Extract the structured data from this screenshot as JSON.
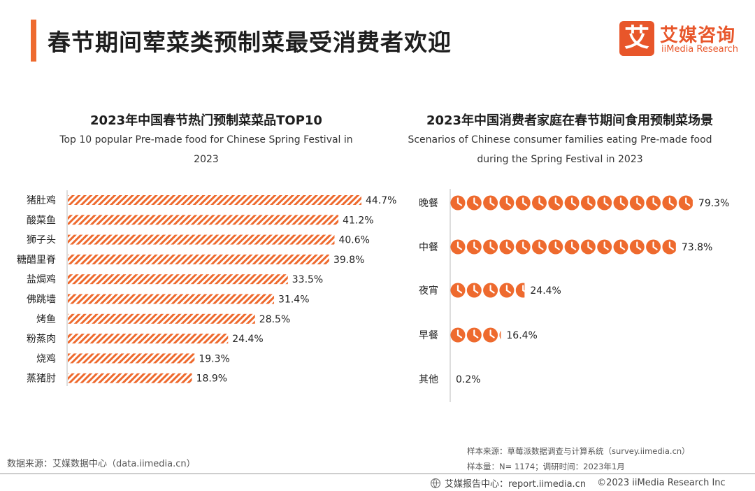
{
  "header": {
    "title": "春节期间荤菜类预制菜最受消费者欢迎",
    "logo_glyph": "艾",
    "logo_cn": "艾媒咨询",
    "logo_en": "iiMedia Research"
  },
  "colors": {
    "accent": "#ee6a2e",
    "axis": "#bbbbbb",
    "text": "#222222"
  },
  "chart_data": [
    {
      "type": "bar",
      "orientation": "horizontal",
      "title": "2023年中国春节热门预制菜菜品TOP10",
      "subtitle_lines": [
        "Top 10 popular Pre-made food for Chinese Spring Festival in",
        "2023"
      ],
      "categories": [
        "猪肚鸡",
        "酸菜鱼",
        "狮子头",
        "糖醋里脊",
        "盐焗鸡",
        "佛跳墙",
        "烤鱼",
        "粉蒸肉",
        "烧鸡",
        "蒸猪肘"
      ],
      "values": [
        44.7,
        41.2,
        40.6,
        39.8,
        33.5,
        31.4,
        28.5,
        24.4,
        19.3,
        18.9
      ],
      "value_labels": [
        "44.7%",
        "41.2%",
        "40.6%",
        "39.8%",
        "33.5%",
        "31.4%",
        "28.5%",
        "24.4%",
        "19.3%",
        "18.9%"
      ],
      "unit": "%",
      "xlim": [
        0,
        45
      ]
    },
    {
      "type": "pictogram",
      "title": "2023年中国消费者家庭在春节期间食用预制菜场景",
      "subtitle_lines": [
        "Scenarios of Chinese consumer families eating Pre-made food",
        "during the Spring Festival in 2023"
      ],
      "categories": [
        "晚餐",
        "中餐",
        "夜宵",
        "早餐",
        "其他"
      ],
      "values": [
        79.3,
        73.8,
        24.4,
        16.4,
        0.2
      ],
      "value_labels": [
        "79.3%",
        "73.8%",
        "24.4%",
        "16.4%",
        "0.2%"
      ],
      "unit": "%",
      "percent_per_icon": 5.3
    }
  ],
  "footer": {
    "source": "数据来源：艾媒数据中心（data.iimedia.cn）",
    "sample_source": "样本来源：草莓派数据调查与计算系统（survey.iimedia.cn）",
    "sample_size": "样本量：N= 1174；调研时间：2023年1月",
    "report_center": "艾媒报告中心：report.iimedia.cn",
    "copyright": "©2023  iiMedia Research  Inc"
  }
}
